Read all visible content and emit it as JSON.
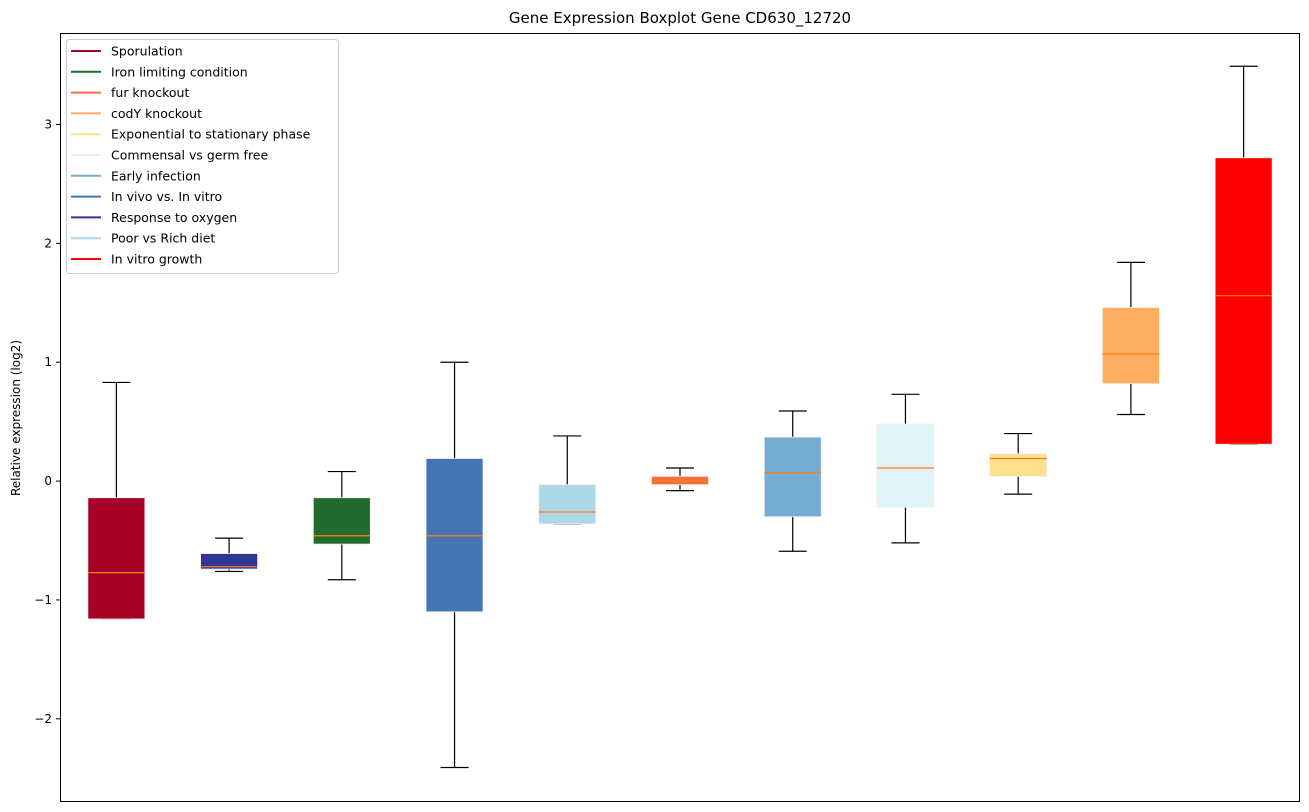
{
  "chart_data": {
    "type": "boxplot",
    "title": "Gene Expression Boxplot Gene CD630_12720",
    "xlabel": "",
    "ylabel": "Relative expression (log2)",
    "ylim": [
      -2.7,
      3.77
    ],
    "yticks": [
      -2,
      -1,
      0,
      1,
      2,
      3
    ],
    "ytick_labels": [
      "−2",
      "−1",
      "0",
      "1",
      "2",
      "3"
    ],
    "grid": false,
    "legend_placement": "top-left",
    "median_color": "#ff7f0e",
    "boxes": [
      {
        "name": "Sporulation",
        "color": "#a50026",
        "whislo": -1.16,
        "q1": -1.16,
        "med": -0.77,
        "q3": -0.14,
        "whishi": 0.83
      },
      {
        "name": "Response to oxygen",
        "color": "#313695",
        "whislo": -0.76,
        "q1": -0.74,
        "med": -0.72,
        "q3": -0.61,
        "whishi": -0.48
      },
      {
        "name": "Iron limiting condition",
        "color": "#226b2e",
        "whislo": -0.83,
        "q1": -0.53,
        "med": -0.46,
        "q3": -0.14,
        "whishi": 0.08
      },
      {
        "name": "In vivo vs. In vitro",
        "color": "#4575b4",
        "whislo": -2.41,
        "q1": -1.1,
        "med": -0.46,
        "q3": 0.19,
        "whishi": 1.0
      },
      {
        "name": "Poor vs Rich diet",
        "color": "#abd9e9",
        "whislo": -0.36,
        "q1": -0.36,
        "med": -0.26,
        "q3": -0.03,
        "whishi": 0.38
      },
      {
        "name": "fur knockout",
        "color": "#f46d43",
        "whislo": -0.08,
        "q1": -0.03,
        "med": 0.0,
        "q3": 0.04,
        "whishi": 0.11
      },
      {
        "name": "Early infection",
        "color": "#74add1",
        "whislo": -0.59,
        "q1": -0.3,
        "med": 0.07,
        "q3": 0.37,
        "whishi": 0.59
      },
      {
        "name": "Commensal vs germ free",
        "color": "#e0f3f8",
        "whislo": -0.52,
        "q1": -0.22,
        "med": 0.11,
        "q3": 0.48,
        "whishi": 0.73
      },
      {
        "name": "Exponential to stationary phase",
        "color": "#fee090",
        "whislo": -0.11,
        "q1": 0.04,
        "med": 0.19,
        "q3": 0.23,
        "whishi": 0.4
      },
      {
        "name": "codY knockout",
        "color": "#fdae61",
        "whislo": 0.56,
        "q1": 0.82,
        "med": 1.07,
        "q3": 1.46,
        "whishi": 1.84
      },
      {
        "name": "In vitro growth",
        "color": "#ff0000",
        "whislo": 0.31,
        "q1": 0.31,
        "med": 1.56,
        "q3": 2.72,
        "whishi": 3.49
      }
    ],
    "legend": [
      {
        "label": "Sporulation",
        "color": "#a50026"
      },
      {
        "label": "Iron limiting condition",
        "color": "#226b2e"
      },
      {
        "label": "fur knockout",
        "color": "#f46d43"
      },
      {
        "label": "codY knockout",
        "color": "#fdae61"
      },
      {
        "label": "Exponential to stationary phase",
        "color": "#fee090"
      },
      {
        "label": "Commensal vs germ free",
        "color": "#e0f3f8"
      },
      {
        "label": "Early infection",
        "color": "#74add1"
      },
      {
        "label": "In vivo vs. In vitro",
        "color": "#4575b4"
      },
      {
        "label": "Response to oxygen",
        "color": "#313695"
      },
      {
        "label": "Poor vs Rich diet",
        "color": "#abd9e9"
      },
      {
        "label": "In vitro growth",
        "color": "#ff0000"
      }
    ]
  }
}
